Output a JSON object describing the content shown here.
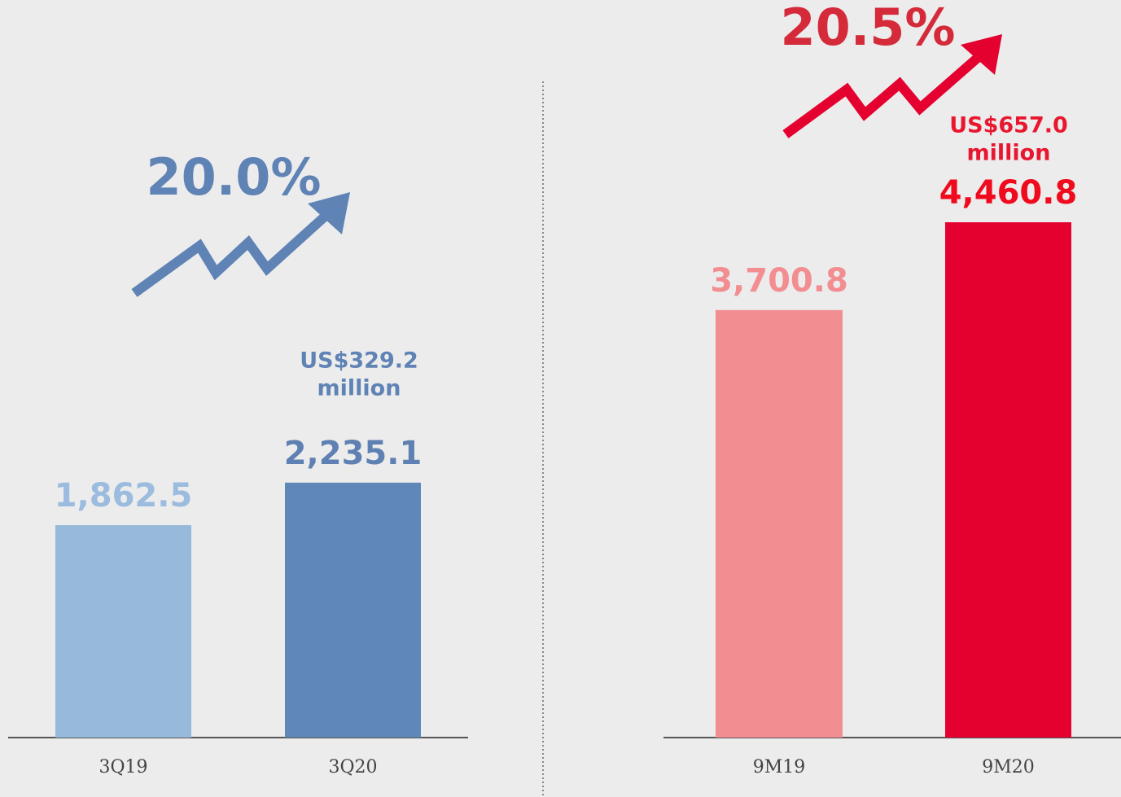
{
  "chart_data": [
    {
      "type": "bar",
      "categories": [
        "3Q19",
        "3Q20"
      ],
      "values": [
        1862.5,
        2235.1
      ],
      "value_labels": [
        "1,862.5",
        "2,235.1"
      ],
      "colors": [
        "#97b9da",
        "#5f87b8"
      ],
      "label_colors": [
        "#9bbbdf",
        "#5f80b2"
      ],
      "growth": "20.0%",
      "growth_color": "#5f83b5",
      "note": [
        "US$329.2",
        "million"
      ],
      "note_color": "#5f83b5"
    },
    {
      "type": "bar",
      "categories": [
        "9M19",
        "9M20"
      ],
      "values": [
        3700.8,
        4460.8
      ],
      "value_labels": [
        "3,700.8",
        "4,460.8"
      ],
      "colors": [
        "#f28e91",
        "#e4002f"
      ],
      "label_colors": [
        "#f28e91",
        "#f00a1e"
      ],
      "growth": "20.5%",
      "growth_color": "#d42a3a",
      "note": [
        "US$657.0",
        "million"
      ],
      "note_color": "#e8172f"
    }
  ]
}
